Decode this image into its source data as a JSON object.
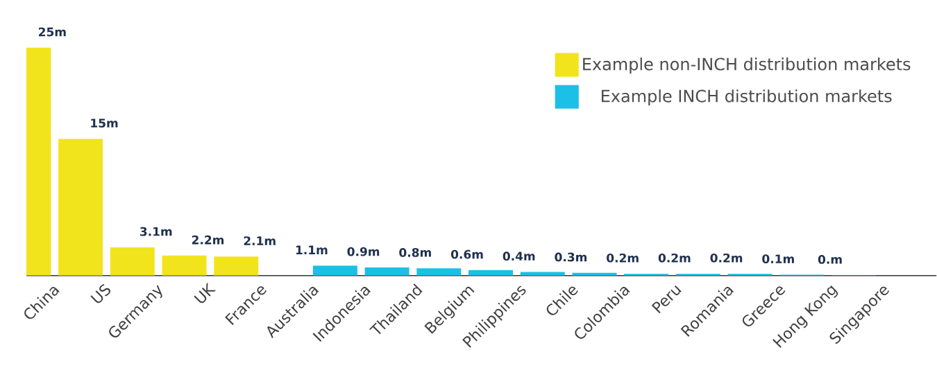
{
  "chart_data": {
    "type": "bar",
    "categories": [
      "China",
      "US",
      "Germany",
      "UK",
      "France",
      "Australia",
      "Indonesia",
      "Thailand",
      "Belgium",
      "Philippines",
      "Chile",
      "Colombia",
      "Peru",
      "Romania",
      "Greece",
      "Hong Kong",
      "Singapore"
    ],
    "series": [
      {
        "name": "Example non-INCH distribution markets",
        "color": "#f2e41c",
        "values": [
          25,
          15,
          3.1,
          2.2,
          2.1,
          null,
          null,
          null,
          null,
          null,
          null,
          null,
          null,
          null,
          null,
          null,
          null
        ],
        "value_labels": [
          "25m",
          "15m",
          "3.1m",
          "2.2m",
          "2.1m",
          null,
          null,
          null,
          null,
          null,
          null,
          null,
          null,
          null,
          null,
          null,
          null
        ]
      },
      {
        "name": "Example INCH distribution markets",
        "color": "#1cbfe6",
        "values": [
          null,
          null,
          null,
          null,
          null,
          1.1,
          0.9,
          0.8,
          0.6,
          0.4,
          0.3,
          0.2,
          0.2,
          0.2,
          0.1,
          0.04,
          0
        ],
        "value_labels": [
          null,
          null,
          null,
          null,
          null,
          "1.1m",
          "0.9m",
          "0.8m",
          "0.6m",
          "0.4m",
          "0.3m",
          "0.2m",
          "0.2m",
          "0.2m",
          "0.1m",
          "0.m",
          null
        ]
      }
    ],
    "legend": "top right"
  }
}
